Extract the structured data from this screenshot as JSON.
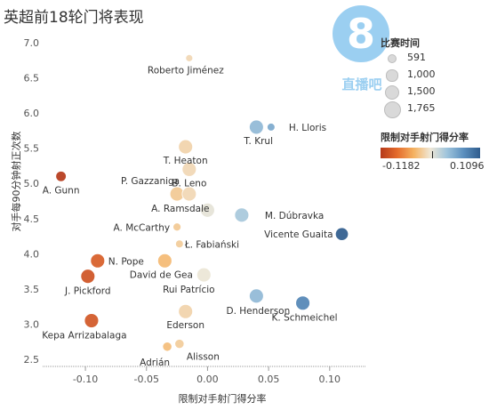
{
  "title": "英超前18轮门将表现",
  "watermark": {
    "digit": "8",
    "text": "直播吧"
  },
  "chart_data": {
    "type": "scatter",
    "title": "英超前18轮门将表现",
    "xlabel": "限制对手射门得分率",
    "ylabel": "对手每90分钟射正次数",
    "xlim": [
      -0.135,
      0.13
    ],
    "ylim": [
      2.45,
      7.05
    ],
    "xticks": [
      -0.1,
      -0.05,
      0.0,
      0.05,
      0.1
    ],
    "xtick_labels": [
      "-0.10",
      "-0.05",
      "0.00",
      "0.05",
      "0.10"
    ],
    "yticks": [
      2.5,
      3.0,
      3.5,
      4.0,
      4.5,
      5.0,
      5.5,
      6.0,
      6.5,
      7.0
    ],
    "ytick_labels": [
      "2.5",
      "3.0",
      "3.5",
      "4.0",
      "4.5",
      "5.0",
      "5.5",
      "6.0",
      "6.5",
      "7.0"
    ],
    "grid": false,
    "size_legend": {
      "title": "比赛时间",
      "values": [
        591,
        1000,
        1500,
        1765
      ],
      "labels": [
        "591",
        "1,000",
        "1,500",
        "1,765"
      ]
    },
    "color_legend": {
      "title": "限制对手射门得分率",
      "min_label": "-0.1182",
      "max_label": "0.1096",
      "min": -0.1182,
      "max": 0.1096
    },
    "points": [
      {
        "name": "Roberto Jiménez",
        "x": -0.015,
        "y": 6.78,
        "minutes": 591
      },
      {
        "name": "H. Lloris",
        "x": 0.052,
        "y": 5.8,
        "minutes": 700
      },
      {
        "name": "T. Krul",
        "x": 0.04,
        "y": 5.8,
        "minutes": 1620
      },
      {
        "name": "T. Heaton",
        "x": -0.018,
        "y": 5.52,
        "minutes": 1620
      },
      {
        "name": "B. Leno",
        "x": -0.015,
        "y": 5.2,
        "minutes": 1620
      },
      {
        "name": "A. Gunn",
        "x": -0.12,
        "y": 5.1,
        "minutes": 1080
      },
      {
        "name": "P. Gazzaniga",
        "x": -0.025,
        "y": 4.85,
        "minutes": 1620
      },
      {
        "name": "A. Ramsdale",
        "x": -0.015,
        "y": 4.85,
        "minutes": 1620
      },
      {
        "name": "M. Dúbravka",
        "x": 0.028,
        "y": 4.55,
        "minutes": 1620
      },
      {
        "name": "",
        "x": 0.0,
        "y": 4.62,
        "minutes": 1620
      },
      {
        "name": "Vicente Guaita",
        "x": 0.11,
        "y": 4.28,
        "minutes": 1440
      },
      {
        "name": "A. McCarthy",
        "x": -0.025,
        "y": 4.38,
        "minutes": 720
      },
      {
        "name": "Ł. Fabiański",
        "x": -0.023,
        "y": 4.14,
        "minutes": 700
      },
      {
        "name": "N. Pope",
        "x": -0.09,
        "y": 3.9,
        "minutes": 1620
      },
      {
        "name": "David de Gea",
        "x": -0.035,
        "y": 3.9,
        "minutes": 1620
      },
      {
        "name": "J. Pickford",
        "x": -0.098,
        "y": 3.68,
        "minutes": 1620
      },
      {
        "name": "Rui Patrício",
        "x": -0.003,
        "y": 3.7,
        "minutes": 1620
      },
      {
        "name": "D. Henderson",
        "x": 0.04,
        "y": 3.4,
        "minutes": 1620
      },
      {
        "name": "K. Schmeichel",
        "x": 0.078,
        "y": 3.3,
        "minutes": 1620
      },
      {
        "name": "Ederson",
        "x": -0.018,
        "y": 3.18,
        "minutes": 1620
      },
      {
        "name": "Kepa Arrizabalaga",
        "x": -0.095,
        "y": 3.05,
        "minutes": 1620
      },
      {
        "name": "Alisson",
        "x": -0.023,
        "y": 2.72,
        "minutes": 900
      },
      {
        "name": "Adrián",
        "x": -0.033,
        "y": 2.68,
        "minutes": 900
      }
    ]
  }
}
